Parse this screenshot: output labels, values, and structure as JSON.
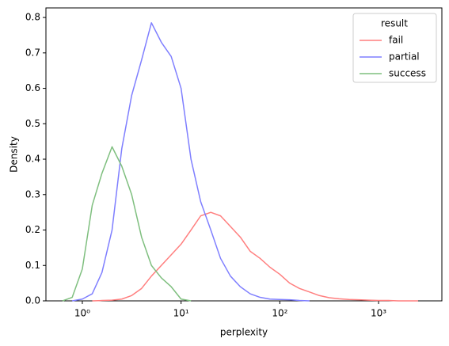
{
  "chart_data": {
    "type": "line",
    "xlabel": "perplexity",
    "ylabel": "Density",
    "xscale": "log",
    "x": [
      0.63,
      0.79,
      1,
      1.26,
      1.58,
      2,
      2.51,
      3.16,
      3.98,
      5.01,
      6.31,
      7.94,
      10,
      12.6,
      15.8,
      20,
      25.1,
      31.6,
      39.8,
      50.1,
      63.1,
      79.4,
      100,
      126,
      158,
      200,
      251,
      316,
      398,
      501,
      631,
      794,
      1000,
      1259,
      1585,
      1995,
      2512
    ],
    "series": [
      {
        "name": "fail",
        "color": "#ff7f7f",
        "values": [
          null,
          null,
          null,
          0,
          0.001,
          0.002,
          0.005,
          0.015,
          0.035,
          0.07,
          0.1,
          0.13,
          0.16,
          0.2,
          0.24,
          0.25,
          0.24,
          0.21,
          0.18,
          0.14,
          0.12,
          0.095,
          0.075,
          0.05,
          0.035,
          0.025,
          0.015,
          0.009,
          0.006,
          0.004,
          0.003,
          0.002,
          0.001,
          0.001,
          0,
          0,
          0
        ]
      },
      {
        "name": "partial",
        "color": "#7f7fff",
        "values": [
          null,
          0,
          0.005,
          0.02,
          0.08,
          0.2,
          0.43,
          0.58,
          0.68,
          0.785,
          0.73,
          0.69,
          0.6,
          0.4,
          0.28,
          0.2,
          0.12,
          0.07,
          0.04,
          0.02,
          0.01,
          0.005,
          0.004,
          0.003,
          0.001,
          0,
          null,
          null,
          null,
          null,
          null,
          null,
          null,
          null,
          null,
          null,
          null
        ]
      },
      {
        "name": "success",
        "color": "#7fbf7f",
        "values": [
          0,
          0.01,
          0.09,
          0.27,
          0.36,
          0.435,
          0.38,
          0.3,
          0.18,
          0.1,
          0.065,
          0.04,
          0.005,
          0,
          null,
          null,
          null,
          null,
          null,
          null,
          null,
          null,
          null,
          null,
          null,
          null,
          null,
          null,
          null,
          null,
          null,
          null,
          null,
          null,
          null,
          null,
          null
        ]
      }
    ],
    "legend_title": "result",
    "legend": "upper right",
    "xlim": [
      0.428,
      4375
    ],
    "xticks": [
      {
        "value": 1,
        "label": "10⁰"
      },
      {
        "value": 10,
        "label": "10¹"
      },
      {
        "value": 100,
        "label": "10²"
      },
      {
        "value": 1000,
        "label": "10³"
      }
    ],
    "ylim": [
      0,
      0.827
    ],
    "yticks": [
      {
        "value": 0,
        "label": "0.0"
      },
      0.1,
      0.2,
      0.3,
      0.4,
      0.5,
      0.6,
      0.7,
      0.8
    ]
  }
}
